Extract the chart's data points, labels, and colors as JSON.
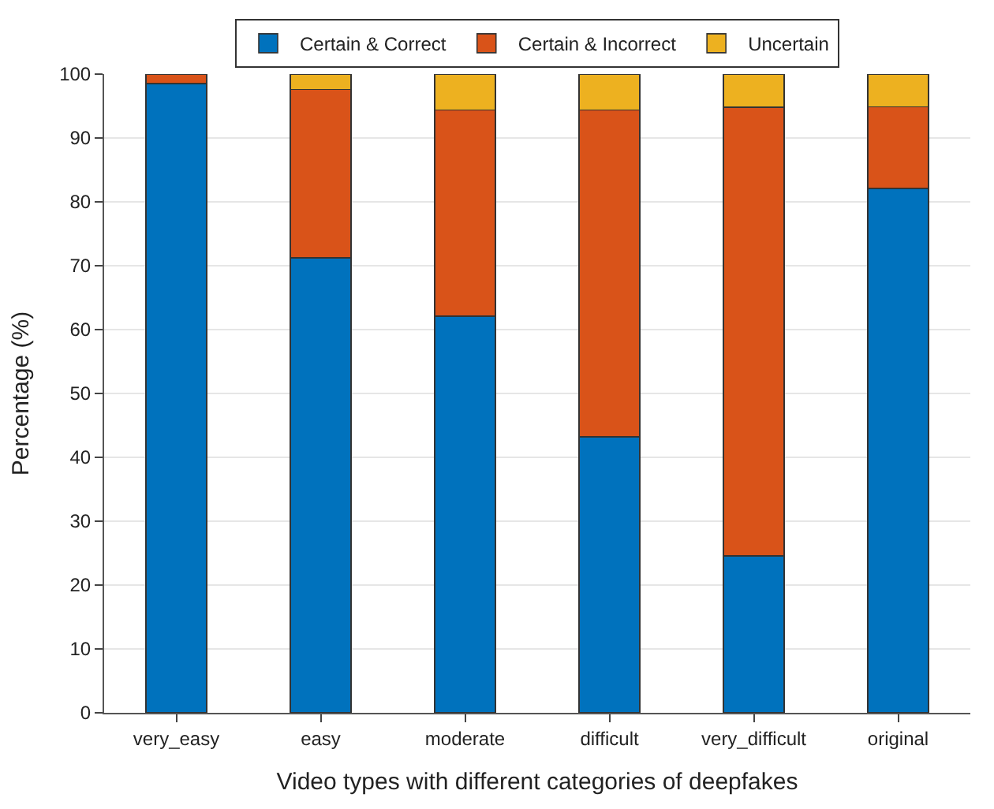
{
  "chart_data": {
    "type": "bar",
    "stacked": true,
    "xlabel": "Video types with different categories of deepfakes",
    "ylabel": "Percentage (%)",
    "categories": [
      "very_easy",
      "easy",
      "moderate",
      "difficult",
      "very_difficult",
      "original"
    ],
    "series": [
      {
        "name": "Certain & Correct",
        "color": "#0072bd",
        "values": [
          98.5,
          71.2,
          62.1,
          43.2,
          24.6,
          82.1
        ]
      },
      {
        "name": "Certain & Incorrect",
        "color": "#d95319",
        "values": [
          1.5,
          26.4,
          32.3,
          51.2,
          70.2,
          12.8
        ]
      },
      {
        "name": "Uncertain",
        "color": "#edb120",
        "values": [
          null,
          2.4,
          5.6,
          5.6,
          5.2,
          5.1
        ]
      }
    ],
    "ylim": [
      0,
      100
    ],
    "yticks": [
      0,
      10,
      20,
      30,
      40,
      50,
      60,
      70,
      80,
      90,
      100
    ],
    "grid": "y",
    "legend": "top"
  }
}
